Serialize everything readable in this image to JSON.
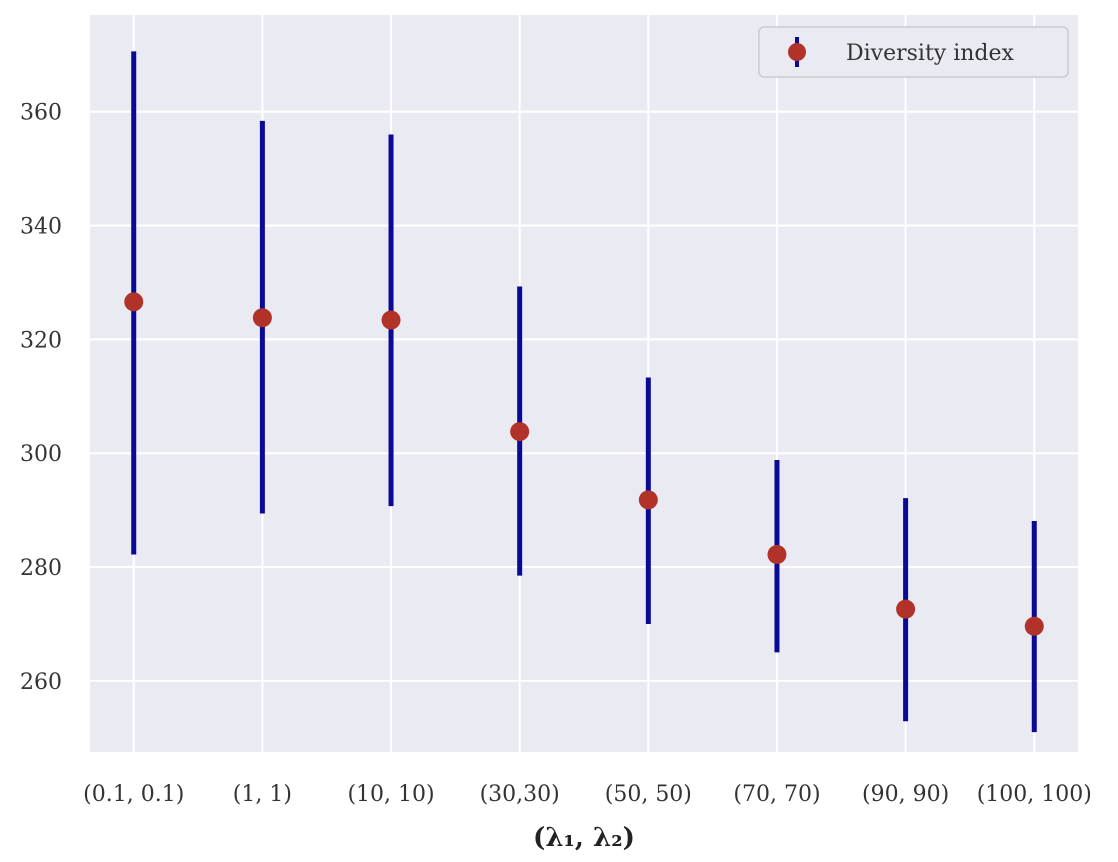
{
  "chart_data": {
    "type": "errorbar",
    "categories": [
      "(0.1, 0.1)",
      "(1, 1)",
      "(10, 10)",
      "(30,30)",
      "(50, 50)",
      "(70, 70)",
      "(90, 90)",
      "(100, 100)"
    ],
    "series": [
      {
        "name": "Diversity index",
        "values": [
          326.6,
          323.8,
          323.4,
          303.8,
          291.8,
          282.2,
          272.6,
          269.6
        ],
        "error_low": [
          282.2,
          289.4,
          290.7,
          278.5,
          270.0,
          265.0,
          252.9,
          251.0
        ],
        "error_high": [
          370.6,
          358.4,
          356.0,
          329.3,
          313.3,
          298.8,
          292.1,
          288.1
        ]
      }
    ],
    "xlabel": "(λ₁, λ₂)",
    "ylabel": "",
    "ylim": [
      247.5,
      377
    ],
    "yticks": [
      260,
      280,
      300,
      320,
      340,
      360
    ],
    "grid": true,
    "legend": "top-right",
    "colors": {
      "background": "#eaeaf2",
      "grid": "#ffffff",
      "errorbar": "#0a0a96",
      "marker": "#b03228"
    }
  }
}
